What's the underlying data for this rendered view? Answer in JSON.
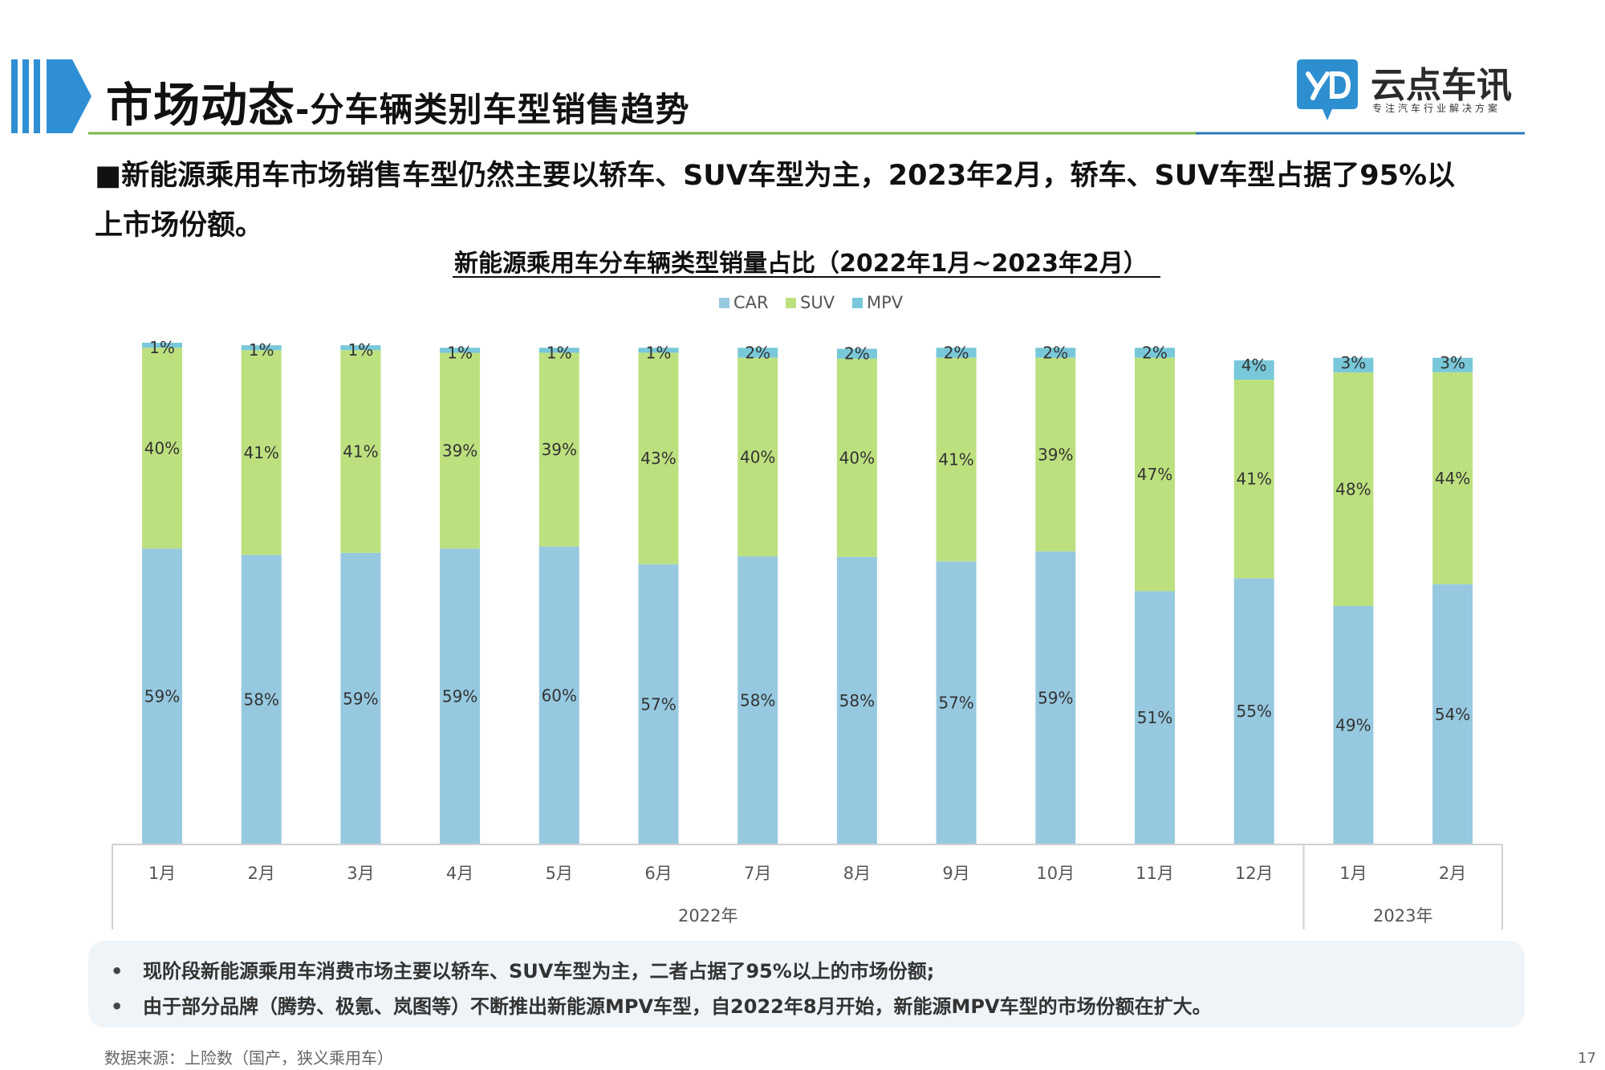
{
  "header": {
    "title_main": "市场动态",
    "title_sub": "-分车辆类别车型销售趋势",
    "logo_name": "云点车讯",
    "logo_tagline": "专注汽车行业解决方案",
    "logo_icon": "yd-logo-icon"
  },
  "headline": {
    "line1": "■新能源乘用车市场销售车型仍然主要以轿车、SUV车型为主，2023年2月，轿车、SUV车型占据了95%以",
    "line2": "上市场份额。"
  },
  "chart_data": {
    "type": "bar",
    "stacked": true,
    "title": "新能源乘用车分车辆类型销量占比（2022年1月~2023年2月）",
    "categories": [
      "1月",
      "2月",
      "3月",
      "4月",
      "5月",
      "6月",
      "7月",
      "8月",
      "9月",
      "10月",
      "11月",
      "12月",
      "1月",
      "2月"
    ],
    "year_groups": [
      {
        "label": "2022年",
        "count": 12
      },
      {
        "label": "2023年",
        "count": 2
      }
    ],
    "series": [
      {
        "name": "CAR",
        "color": "#96c9e0",
        "values": [
          59,
          58,
          59,
          59,
          60,
          57,
          58,
          58,
          57,
          59,
          51,
          55,
          49,
          54
        ]
      },
      {
        "name": "SUV",
        "color": "#bde07f",
        "values": [
          40,
          41,
          41,
          39,
          39,
          43,
          40,
          40,
          41,
          39,
          47,
          41,
          48,
          44
        ]
      },
      {
        "name": "MPV",
        "color": "#78c8d9",
        "values": [
          1,
          1,
          1,
          1,
          1,
          1,
          2,
          2,
          2,
          2,
          2,
          4,
          3,
          3
        ]
      }
    ],
    "bar_tops": [
      100,
      99.5,
      99.5,
      99,
      99,
      99,
      99,
      98.8,
      99,
      99,
      99,
      96.5,
      97,
      97
    ],
    "ylim": [
      0,
      100
    ],
    "legend_position": "top-center",
    "grid": false,
    "label_format": "{v}%"
  },
  "notes": {
    "bullet": "•",
    "item1": "现阶段新能源乘用车消费市场主要以轿车、SUV车型为主，二者占据了95%以上的市场份额;",
    "item2": "由于部分品牌（腾势、极氪、岚图等）不断推出新能源MPV车型，自2022年8月开始，新能源MPV车型的市场份额在扩大。"
  },
  "footer": {
    "source": "数据来源：上险数（国产，狭义乘用车）",
    "page_number": "17"
  },
  "colors": {
    "accent_blue": "#2e8fd0",
    "header_bar_blue": "#2f8fd4",
    "rule_green": "#7ab648",
    "rule_blue": "#2b79b8"
  }
}
